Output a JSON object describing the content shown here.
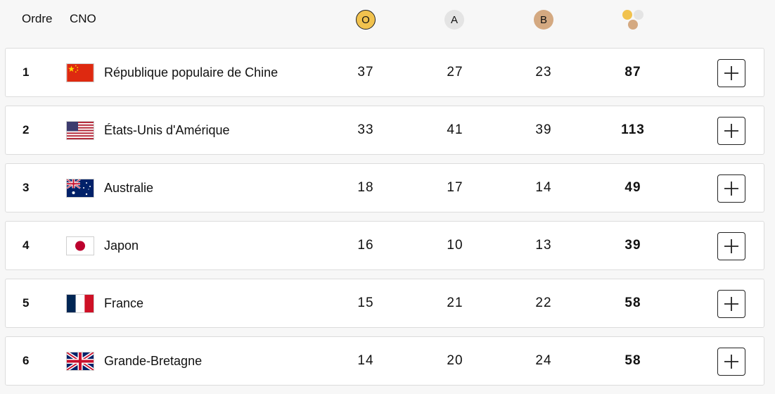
{
  "header": {
    "rank_label": "Ordre",
    "noc_label": "CNO",
    "gold_label": "O",
    "silver_label": "A",
    "bronze_label": "B",
    "total_icon": "medals-total-icon"
  },
  "colors": {
    "gold": "#f1c24e",
    "silver": "#e4e4e4",
    "bronze": "#d4a981"
  },
  "rows": [
    {
      "rank": "1",
      "country": "République populaire de Chine",
      "flag": "china-flag-icon",
      "gold": "37",
      "silver": "27",
      "bronze": "23",
      "total": "87"
    },
    {
      "rank": "2",
      "country": "États-Unis d'Amérique",
      "flag": "usa-flag-icon",
      "gold": "33",
      "silver": "41",
      "bronze": "39",
      "total": "113"
    },
    {
      "rank": "3",
      "country": "Australie",
      "flag": "australia-flag-icon",
      "gold": "18",
      "silver": "17",
      "bronze": "14",
      "total": "49"
    },
    {
      "rank": "4",
      "country": "Japon",
      "flag": "japan-flag-icon",
      "gold": "16",
      "silver": "10",
      "bronze": "13",
      "total": "39"
    },
    {
      "rank": "5",
      "country": "France",
      "flag": "france-flag-icon",
      "gold": "15",
      "silver": "21",
      "bronze": "22",
      "total": "58"
    },
    {
      "rank": "6",
      "country": "Grande-Bretagne",
      "flag": "great-britain-flag-icon",
      "gold": "14",
      "silver": "20",
      "bronze": "24",
      "total": "58"
    }
  ]
}
